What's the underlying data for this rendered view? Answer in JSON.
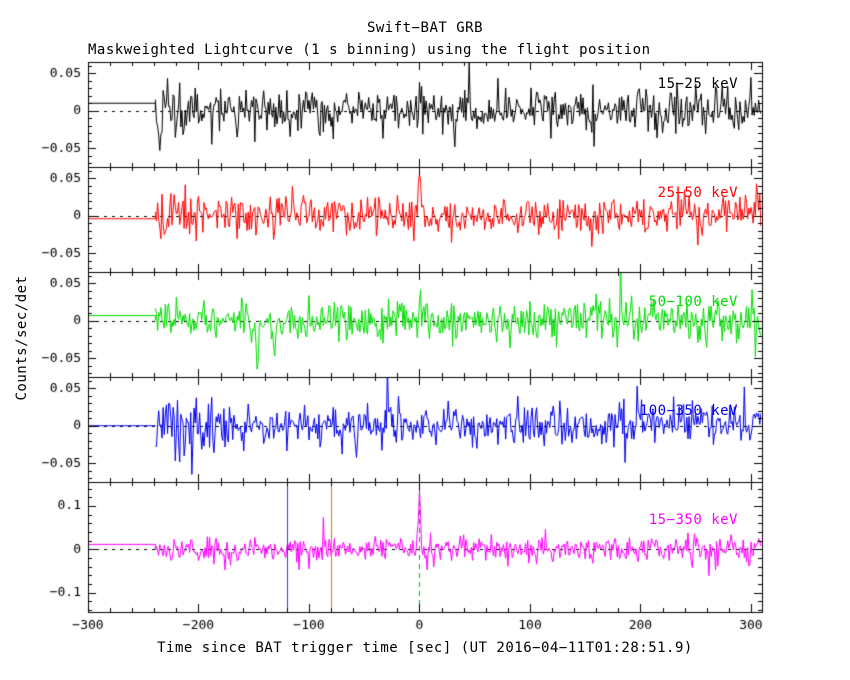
{
  "title": "Swift−BAT GRB",
  "subtitle": "Maskweighted Lightcurve (1 s binning) using the flight position",
  "xlabel": "Time since BAT trigger time [sec] (UT 2016−04−11T01:28:51.9)",
  "ylabel": "Counts/sec/det",
  "chart_data": {
    "type": "line",
    "title": "Swift−BAT GRB",
    "subtitle": "Maskweighted Lightcurve (1 s binning) using the flight position",
    "xlabel": "Time since BAT trigger time [sec] (UT 2016−04−11T01:28:51.9)",
    "ylabel": "Counts/sec/det",
    "x_range": [
      -300,
      310
    ],
    "x_ticks": [
      -300,
      -200,
      -100,
      0,
      100,
      200,
      300
    ],
    "x_minor_step": 20,
    "bin_seconds": 1,
    "data_start": -239,
    "grid": false,
    "panels": [
      {
        "label": "15−25 keV",
        "color": "#000000",
        "ylim": [
          -0.075,
          0.065
        ],
        "yticks": [
          -0.05,
          0,
          0.05
        ],
        "y_minor_step": 0.01,
        "baseline": 0.01,
        "mean": 0.0,
        "sigma": 0.014,
        "tail_prob": 0.05,
        "tail_mult": 2.1,
        "seed": 20160411,
        "noise_regions": [
          {
            "from": -239,
            "to": -226,
            "sigma": 0.021
          }
        ],
        "features": [
          {
            "t": -236,
            "amp": -0.04,
            "width": 1.5
          }
        ]
      },
      {
        "label": "25−50 keV",
        "color": "#ff0000",
        "ylim": [
          -0.075,
          0.065
        ],
        "yticks": [
          -0.05,
          0,
          0.05
        ],
        "y_minor_step": 0.01,
        "baseline": -0.004,
        "mean": 0.0,
        "sigma": 0.012,
        "tail_prob": 0.05,
        "tail_mult": 2.1,
        "seed": 411,
        "noise_regions": [],
        "features": [
          {
            "t": 0,
            "amp": 0.056,
            "width": 1.1
          }
        ]
      },
      {
        "label": "50−100 keV",
        "color": "#00dd00",
        "ylim": [
          -0.075,
          0.065
        ],
        "yticks": [
          -0.05,
          0,
          0.05
        ],
        "y_minor_step": 0.01,
        "baseline": 0.007,
        "mean": 0.0,
        "sigma": 0.013,
        "tail_prob": 0.05,
        "tail_mult": 2.1,
        "seed": 128,
        "noise_regions": [],
        "features": [
          {
            "t": 0,
            "amp": 0.047,
            "width": 1.1
          },
          {
            "t": -147,
            "amp": -0.052,
            "width": 1.4
          },
          {
            "t": -131,
            "amp": -0.044,
            "width": 1.2
          }
        ]
      },
      {
        "label": "100−350 keV",
        "color": "#0000ee",
        "ylim": [
          -0.075,
          0.065
        ],
        "yticks": [
          -0.05,
          0,
          0.05
        ],
        "y_minor_step": 0.01,
        "baseline": 0.0,
        "mean": 0.0,
        "sigma": 0.013,
        "tail_prob": 0.05,
        "tail_mult": 2.1,
        "seed": 351,
        "noise_regions": [
          {
            "from": -239,
            "to": -185,
            "sigma": 0.024
          }
        ],
        "features": []
      },
      {
        "label": "15−350 keV",
        "color": "#ff00ff",
        "ylim": [
          -0.145,
          0.155
        ],
        "yticks": [
          -0.1,
          0,
          0.1
        ],
        "y_minor_step": 0.02,
        "baseline": 0.011,
        "mean": 0.0,
        "sigma": 0.014,
        "tail_prob": 0.05,
        "tail_mult": 2.1,
        "seed": 852,
        "noise_regions": [],
        "features": [
          {
            "t": 0,
            "amp": 0.124,
            "width": 1.0
          }
        ]
      }
    ],
    "markers": [
      {
        "panel": 4,
        "t": -120,
        "color": "#3a3ad0",
        "dash": null
      },
      {
        "panel": 4,
        "t": -80,
        "color": "#cc8800",
        "dash": null
      },
      {
        "panel": 4,
        "t": 0,
        "color": "#00bb00",
        "dash": [
          5,
          4
        ]
      }
    ],
    "zero_line": {
      "color": "#000000",
      "dash": [
        3,
        5
      ]
    }
  }
}
